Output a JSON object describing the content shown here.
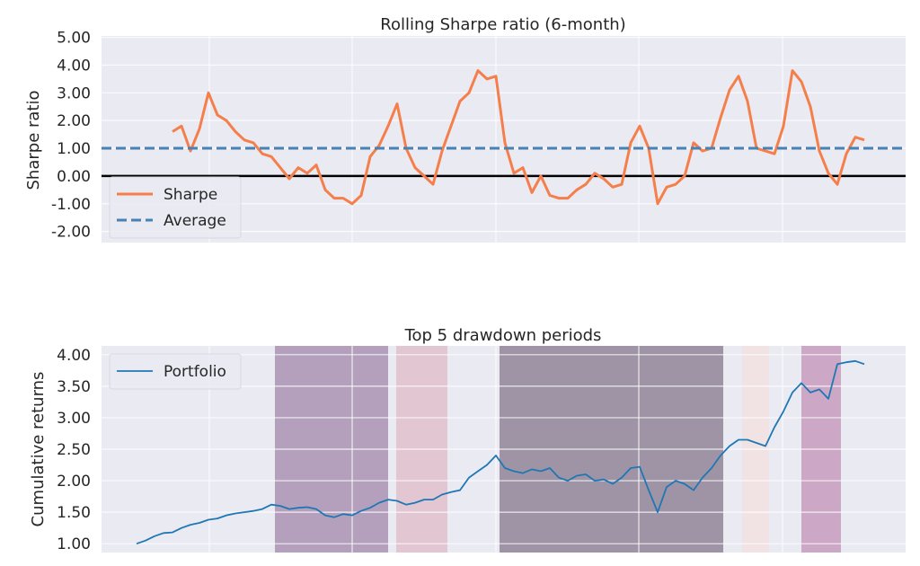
{
  "chart_data": [
    {
      "type": "line",
      "title": "Rolling Sharpe ratio (6-month)",
      "xlabel": "",
      "ylabel": "Sharpe ratio",
      "ylim": [
        -2.4,
        5.05
      ],
      "xlim": [
        -3.9,
        85.6
      ],
      "yticks": [
        5,
        4,
        3,
        2,
        1,
        0,
        -1,
        -2
      ],
      "ytick_labels": [
        "5.00",
        "4.00",
        "3.00",
        "2.00",
        "1.00",
        "0.00",
        "-1.00",
        "-2.00"
      ],
      "grid": true,
      "background": "#eaeaf2",
      "legend": {
        "placement": "lower-left",
        "entries": [
          "Sharpe",
          "Average"
        ]
      },
      "series": [
        {
          "name": "Sharpe",
          "color": "#f57f4b",
          "style": "solid",
          "start_index": 4,
          "values": [
            1.6,
            1.8,
            0.9,
            1.7,
            3.0,
            2.2,
            2.0,
            1.6,
            1.3,
            1.2,
            0.8,
            0.7,
            0.3,
            -0.1,
            0.3,
            0.1,
            0.4,
            -0.5,
            -0.8,
            -0.8,
            -1.0,
            -0.7,
            0.7,
            1.1,
            1.8,
            2.6,
            1.0,
            0.3,
            0.0,
            -0.3,
            0.9,
            1.8,
            2.7,
            3.0,
            3.8,
            3.5,
            3.6,
            1.2,
            0.1,
            0.3,
            -0.6,
            0.0,
            -0.7,
            -0.8,
            -0.8,
            -0.5,
            -0.3,
            0.1,
            -0.1,
            -0.4,
            -0.3,
            1.2,
            1.8,
            1.0,
            -1.0,
            -0.4,
            -0.3,
            0.0,
            1.2,
            0.9,
            1.0,
            2.1,
            3.1,
            3.6,
            2.7,
            1.0,
            0.9,
            0.8,
            1.8,
            3.8,
            3.4,
            2.5,
            0.9,
            0.1,
            -0.3,
            0.8,
            1.4,
            1.3
          ]
        },
        {
          "name": "Average",
          "color": "#4682b4",
          "style": "dashed",
          "value": 1.0
        }
      ],
      "reference_line": {
        "value": 0.0,
        "color": "#000000"
      }
    },
    {
      "type": "line",
      "title": "Top 5 drawdown periods",
      "xlabel": "",
      "ylabel": "Cumulative returns",
      "ylim": [
        0.86,
        4.14
      ],
      "xlim": [
        -3.9,
        85.6
      ],
      "yticks": [
        4,
        3.5,
        3,
        2.5,
        2,
        1.5,
        1
      ],
      "ytick_labels": [
        "4.00",
        "3.50",
        "3.00",
        "2.50",
        "2.00",
        "1.50",
        "1.00"
      ],
      "grid": true,
      "background": "#eaeaf2",
      "legend": {
        "placement": "upper-left",
        "entries": [
          "Portfolio"
        ]
      },
      "series": [
        {
          "name": "Portfolio",
          "color": "#1f77b4",
          "start_index": 0,
          "values": [
            1.0,
            1.05,
            1.12,
            1.17,
            1.18,
            1.25,
            1.3,
            1.33,
            1.38,
            1.4,
            1.45,
            1.48,
            1.5,
            1.52,
            1.55,
            1.62,
            1.6,
            1.55,
            1.57,
            1.58,
            1.55,
            1.45,
            1.42,
            1.47,
            1.45,
            1.52,
            1.57,
            1.65,
            1.7,
            1.68,
            1.62,
            1.65,
            1.7,
            1.7,
            1.78,
            1.82,
            1.85,
            2.05,
            2.15,
            2.25,
            2.4,
            2.2,
            2.15,
            2.12,
            2.18,
            2.15,
            2.2,
            2.05,
            2.0,
            2.08,
            2.1,
            2.0,
            2.02,
            1.95,
            2.05,
            2.2,
            2.22,
            1.85,
            1.5,
            1.9,
            2.0,
            1.95,
            1.85,
            2.05,
            2.2,
            2.4,
            2.55,
            2.65,
            2.65,
            2.6,
            2.55,
            2.85,
            3.1,
            3.4,
            3.55,
            3.4,
            3.45,
            3.3,
            3.85,
            3.88,
            3.9,
            3.85
          ]
        }
      ],
      "drawdown_periods": [
        {
          "start": 15.4,
          "end": 28.0,
          "color": "#b4a0bc"
        },
        {
          "start": 28.9,
          "end": 34.6,
          "color": "#e2c6d2"
        },
        {
          "start": 40.4,
          "end": 65.3,
          "color": "#9e94a6"
        },
        {
          "start": 67.4,
          "end": 70.4,
          "color": "#f1e2e4"
        },
        {
          "start": 74.0,
          "end": 78.4,
          "color": "#cca8c6"
        }
      ]
    }
  ]
}
